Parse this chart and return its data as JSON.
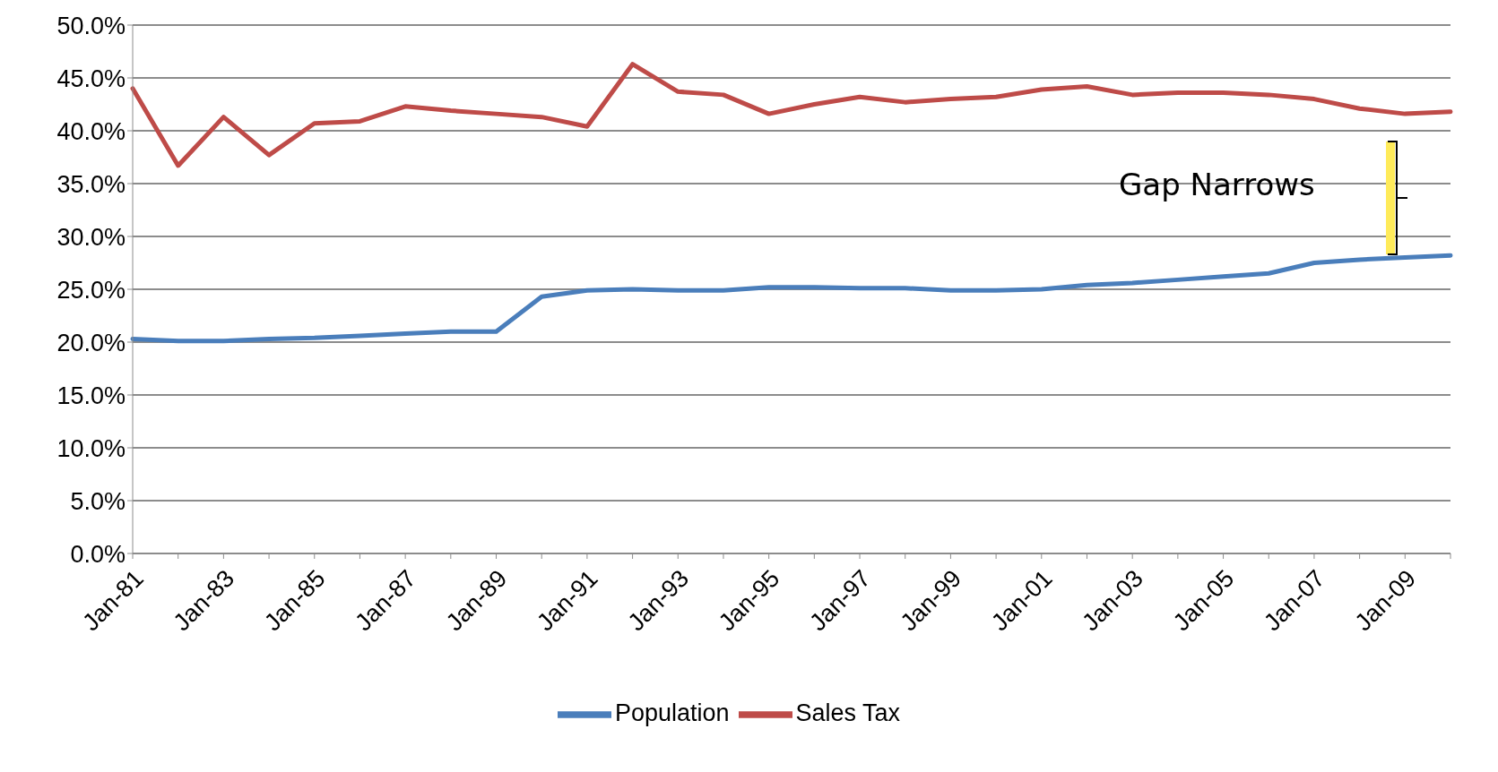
{
  "chart_data": {
    "type": "line",
    "categories": [
      "Jan-81",
      null,
      "Jan-83",
      null,
      "Jan-85",
      null,
      "Jan-87",
      null,
      "Jan-89",
      null,
      "Jan-91",
      null,
      "Jan-93",
      null,
      "Jan-95",
      null,
      "Jan-97",
      null,
      "Jan-99",
      null,
      "Jan-01",
      null,
      "Jan-03",
      null,
      "Jan-05",
      null,
      "Jan-07",
      null,
      "Jan-09",
      null
    ],
    "series": [
      {
        "name": "Population",
        "color": "#4a7ebb",
        "values": [
          20.3,
          20.1,
          20.1,
          20.3,
          20.4,
          20.6,
          20.8,
          21.0,
          21.0,
          24.3,
          24.9,
          25.0,
          24.9,
          24.9,
          25.2,
          25.2,
          25.1,
          25.1,
          24.9,
          24.9,
          25.0,
          25.4,
          25.6,
          25.9,
          26.2,
          26.5,
          27.5,
          27.8,
          28.0,
          28.2
        ]
      },
      {
        "name": "Sales Tax",
        "color": "#be4b48",
        "values": [
          44.0,
          36.7,
          41.3,
          37.7,
          40.7,
          40.9,
          42.3,
          41.9,
          41.6,
          41.3,
          40.4,
          46.3,
          43.7,
          43.4,
          41.6,
          42.5,
          43.2,
          42.7,
          43.0,
          43.2,
          43.9,
          44.2,
          43.4,
          43.6,
          43.6,
          43.4,
          43.0,
          42.1,
          41.6,
          41.8
        ]
      }
    ],
    "ylim": [
      0,
      50
    ],
    "yticks": [
      {
        "value": 0,
        "label": "0.0%"
      },
      {
        "value": 5,
        "label": "5.0%"
      },
      {
        "value": 10,
        "label": "10.0%"
      },
      {
        "value": 15,
        "label": "15.0%"
      },
      {
        "value": 20,
        "label": "20.0%"
      },
      {
        "value": 25,
        "label": "25.0%"
      },
      {
        "value": 30,
        "label": "30.0%"
      },
      {
        "value": 35,
        "label": "35.0%"
      },
      {
        "value": 40,
        "label": "40.0%"
      },
      {
        "value": 45,
        "label": "45.0%"
      },
      {
        "value": 50,
        "label": "50.0%"
      }
    ],
    "grid": "y",
    "legend": "bottom",
    "marker": "none",
    "line_style": "solid",
    "annotations": [
      "Gap Narrows"
    ]
  }
}
